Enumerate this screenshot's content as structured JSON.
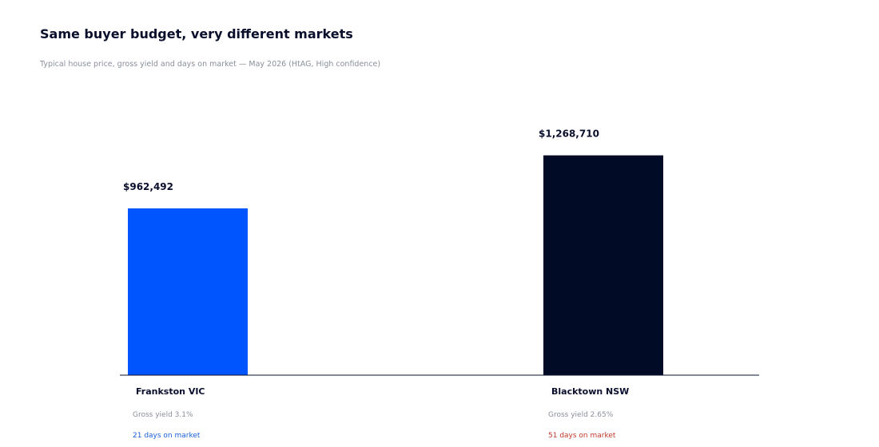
{
  "title": "Same buyer budget, very different markets",
  "subtitle": "Typical house price, gross yield and days on market — May 2026 (HtAG, High confidence)",
  "chart_data": {
    "type": "bar",
    "categories": [
      "Frankston VIC",
      "Blacktown NSW"
    ],
    "values": [
      962492,
      1268710
    ],
    "value_labels": [
      "$962,492",
      "$1,268,710"
    ],
    "gross_yield_labels": [
      "Gross yield 3.1%",
      "Gross yield 2.65%"
    ],
    "gross_yield": [
      3.1,
      2.65
    ],
    "days_on_market_labels": [
      "21 days on market",
      "51 days on market"
    ],
    "days_on_market": [
      21,
      51
    ],
    "bar_colors": [
      "#0055ff",
      "#020b26"
    ],
    "days_on_market_colors": [
      "#1a5fd6",
      "#c0392b"
    ],
    "ylim": [
      0,
      1290000
    ],
    "grid": false,
    "legend": "none",
    "title": "Same buyer budget, very different markets",
    "xlabel": "",
    "ylabel": ""
  }
}
